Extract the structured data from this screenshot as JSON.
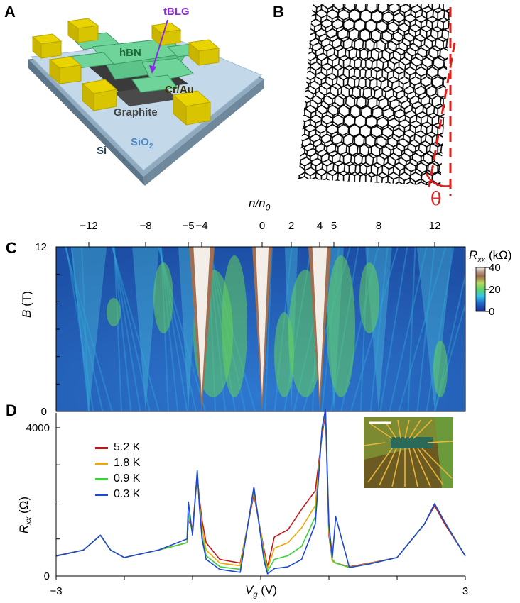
{
  "panels": {
    "a": "A",
    "b": "B",
    "c": "C",
    "d": "D"
  },
  "device_schematic": {
    "labels": {
      "tblg": "tBLG",
      "hbn": "hBN",
      "contacts": "Cr/Au",
      "graphite": "Graphite",
      "si": "Si",
      "sio2_base": "SiO",
      "sio2_sub": "2"
    },
    "colors": {
      "hbn": "#6fd49a",
      "contacts": "#e9d400",
      "graphite": "#3a3a3a",
      "sio2": "#c3d8e9",
      "si": "#7f9ab0",
      "tblg_label": "#8a2be2"
    }
  },
  "lattice_panel": {
    "angle_label": "θ",
    "angle_color": "#e0201a"
  },
  "chart_data": [
    {
      "type": "heatmap",
      "top_axis_label": "n/n",
      "top_axis_label_sub": "0",
      "top_ticks": [
        {
          "label": "−12",
          "value": -12
        },
        {
          "label": "−8",
          "value": -8
        },
        {
          "label": "−5",
          "value": -5
        },
        {
          "label": "−4",
          "value": -4
        },
        {
          "label": "0",
          "value": 0
        },
        {
          "label": "2",
          "value": 2
        },
        {
          "label": "4",
          "value": 4
        },
        {
          "label": "5",
          "value": 5
        },
        {
          "label": "8",
          "value": 8
        },
        {
          "label": "12",
          "value": 12
        }
      ],
      "ylabel": "B",
      "yunit": "(T)",
      "ylim": [
        0,
        12
      ],
      "yticks": [
        "12",
        "0"
      ],
      "xlim": [
        -3,
        3
      ],
      "colorbar": {
        "label_main": "R",
        "label_sub": "xx",
        "label_unit": " (kΩ)",
        "ticks": [
          "40",
          "20",
          "0"
        ],
        "range": [
          0,
          40
        ]
      },
      "resistive_fans_n": [
        -12,
        -8,
        -5,
        -4,
        0,
        2,
        4,
        5,
        8,
        12
      ]
    },
    {
      "type": "line",
      "xlabel": "V",
      "xlabel_sub": "g",
      "xunit": " (V)",
      "ylabel": "R",
      "ylabel_sub": "xx",
      "yunit": " (Ω)",
      "xlim": [
        -3,
        3
      ],
      "xticks": [
        "−3",
        "3"
      ],
      "ylim": [
        0,
        4400
      ],
      "yticks": [
        "4000",
        "0"
      ],
      "x": [
        -3.0,
        -2.6,
        -2.35,
        -2.2,
        -2.0,
        -1.5,
        -1.08,
        -1.06,
        -1.0,
        -0.93,
        -0.9,
        -0.86,
        -0.8,
        -0.6,
        -0.3,
        -0.1,
        0.05,
        0.1,
        0.2,
        0.4,
        0.6,
        0.8,
        0.9,
        0.95,
        1.0,
        1.05,
        1.1,
        1.3,
        1.6,
        2.0,
        2.4,
        2.55,
        2.7,
        3.0
      ],
      "series": [
        {
          "name": "5.2 K",
          "color": "#c0161c",
          "values": [
            550,
            700,
            1100,
            700,
            500,
            700,
            900,
            1500,
            1300,
            2700,
            2100,
            1500,
            900,
            450,
            350,
            2200,
            700,
            250,
            1050,
            1250,
            1800,
            2300,
            3800,
            4400,
            1100,
            400,
            350,
            250,
            350,
            500,
            1400,
            1900,
            1400,
            550
          ]
        },
        {
          "name": "1.8 K",
          "color": "#f0a500",
          "values": [
            540,
            700,
            1100,
            700,
            500,
            700,
            900,
            1600,
            1200,
            2750,
            2000,
            1300,
            700,
            350,
            280,
            2300,
            600,
            200,
            750,
            900,
            1300,
            1900,
            3900,
            4500,
            1200,
            400,
            350,
            240,
            340,
            500,
            1400,
            1950,
            1450,
            540
          ]
        },
        {
          "name": "0.9 K",
          "color": "#3cd23c",
          "values": [
            540,
            700,
            1100,
            700,
            500,
            700,
            900,
            1700,
            1150,
            2800,
            1950,
            1100,
            550,
            250,
            180,
            2350,
            500,
            130,
            450,
            550,
            800,
            1600,
            3950,
            4500,
            1300,
            450,
            350,
            230,
            330,
            500,
            1400,
            1950,
            1450,
            540
          ]
        },
        {
          "name": "0.3 K",
          "color": "#1f47d1",
          "values": [
            540,
            700,
            1100,
            700,
            500,
            700,
            1000,
            2000,
            1100,
            2850,
            1900,
            1000,
            450,
            180,
            100,
            2400,
            400,
            60,
            200,
            250,
            450,
            1400,
            4000,
            4500,
            1400,
            500,
            1600,
            230,
            330,
            500,
            1400,
            1950,
            1450,
            540
          ]
        }
      ]
    }
  ]
}
